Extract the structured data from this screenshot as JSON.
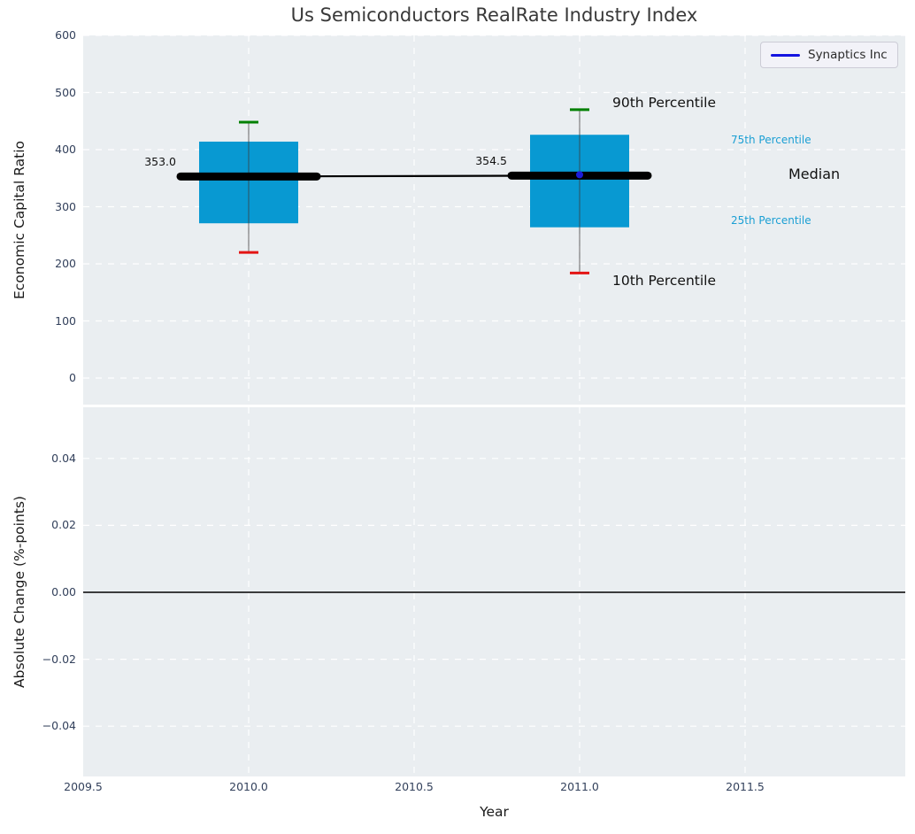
{
  "title": "Us Semiconductors RealRate Industry Index",
  "legend": {
    "label": "Synaptics Inc",
    "line_color": "#1414e0"
  },
  "annotations": {
    "p90": "90th Percentile",
    "p75": "75th Percentile",
    "median": "Median",
    "p25": "25th Percentile",
    "p10": "10th Percentile"
  },
  "colors": {
    "box_fill": "#0899d2",
    "p90_cap": "#008000",
    "p10_cap": "#e31414",
    "median_line": "#000000",
    "whisker": "#3c3c3c",
    "percentile_label": "#1b9fd4",
    "synaptics": "#1c1cd9",
    "plot_background": "#eaeef1",
    "gridline": "#ffffff",
    "tick_label": "#33415c",
    "zero_line": "#000000"
  },
  "chart_data": {
    "type": "box",
    "title": "Us Semiconductors RealRate Industry Index",
    "xlabel": "Year",
    "ylabel_top": "Economic Capital Ratio",
    "ylabel_bottom": "Absolute Change (%-points)",
    "xlim": [
      2009.5,
      2011.98
    ],
    "ylim_top": [
      -46,
      602
    ],
    "ylim_bottom": [
      -0.055,
      0.055
    ],
    "grid": true,
    "legend_position": "upper right",
    "x_ticks": {
      "values": [
        2009.5,
        2010.0,
        2010.5,
        2011.0,
        2011.5
      ],
      "labels": [
        "2009.5",
        "2010.0",
        "2010.5",
        "2011.0",
        "2011.5"
      ]
    },
    "y_ticks_top": {
      "values": [
        600,
        500,
        400,
        300,
        200,
        100,
        0
      ],
      "labels": [
        "600",
        "500",
        "400",
        "300",
        "200",
        "100",
        "0"
      ]
    },
    "y_ticks_bottom": {
      "values": [
        0.04,
        0.02,
        0.0,
        -0.02,
        -0.04
      ],
      "labels": [
        "0.04",
        "0.02",
        "0.00",
        "−0.02",
        "−0.04"
      ]
    },
    "grid_years": [
      2010.0,
      2010.5,
      2011.0,
      2011.5
    ],
    "boxes": [
      {
        "year": 2010,
        "p10": 220,
        "p25": 271,
        "median": 353.0,
        "p75": 414,
        "p90": 448,
        "median_label": "353.0"
      },
      {
        "year": 2011,
        "p10": 184,
        "p25": 264,
        "median": 354.5,
        "p75": 426,
        "p90": 470,
        "median_label": "354.5"
      }
    ],
    "series": [
      {
        "name": "Synaptics Inc",
        "points": [
          {
            "x": 2011,
            "y": 356
          }
        ]
      }
    ],
    "zero_line_bottom": 0.0
  }
}
